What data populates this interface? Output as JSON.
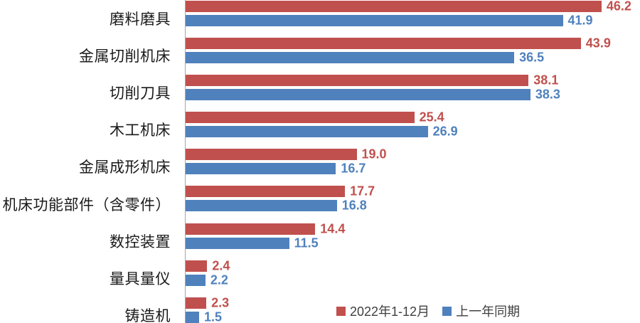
{
  "chart_data": {
    "type": "bar",
    "orientation": "horizontal",
    "title": "",
    "xlabel": "",
    "ylabel": "",
    "xlim": [
      0,
      50
    ],
    "grid": false,
    "value_labels": "outside-end",
    "legend_position": "bottom-right",
    "axis_color": "#a6a6a6",
    "categories": [
      "磨料磨具",
      "金属切削机床",
      "切削刀具",
      "木工机床",
      "金属成形机床",
      "机床功能部件（含零件）",
      "数控装置",
      "量具量仪",
      "铸造机"
    ],
    "series": [
      {
        "name": "2022年1-12月",
        "color": "#C0504D",
        "values": [
          46.2,
          43.9,
          38.1,
          25.4,
          19.0,
          17.7,
          14.4,
          2.4,
          2.3
        ]
      },
      {
        "name": "上一年同期",
        "color": "#4F81BD",
        "values": [
          41.9,
          36.5,
          38.3,
          26.9,
          16.7,
          16.8,
          11.5,
          2.2,
          1.5
        ]
      }
    ]
  }
}
